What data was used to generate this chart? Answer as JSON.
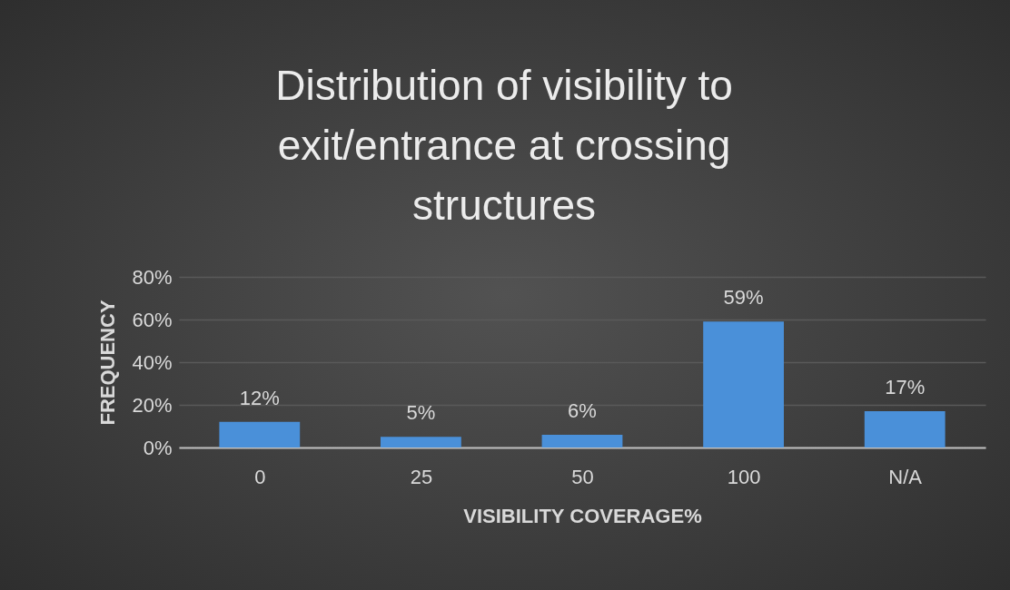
{
  "chart_data": {
    "type": "bar",
    "title": "Distribution of visibility  to exit/entrance at crossing structures",
    "xlabel": "VISIBILITY COVERAGE%",
    "ylabel": "FREQUENCY",
    "categories": [
      "0",
      "25",
      "50",
      "100",
      "N/A"
    ],
    "series": [
      {
        "color": "#4a90d9",
        "values": [
          12,
          5,
          6,
          59,
          17
        ]
      }
    ],
    "value_labels": [
      "12%",
      "5%",
      "6%",
      "59%",
      "17%"
    ],
    "ylim": [
      0,
      80
    ],
    "yticks": [
      {
        "value": 0,
        "label": "0%"
      },
      {
        "value": 20,
        "label": "20%"
      },
      {
        "value": 40,
        "label": "40%"
      },
      {
        "value": 60,
        "label": "60%"
      },
      {
        "value": 80,
        "label": "80%"
      }
    ],
    "grid": "y",
    "legend": false
  }
}
